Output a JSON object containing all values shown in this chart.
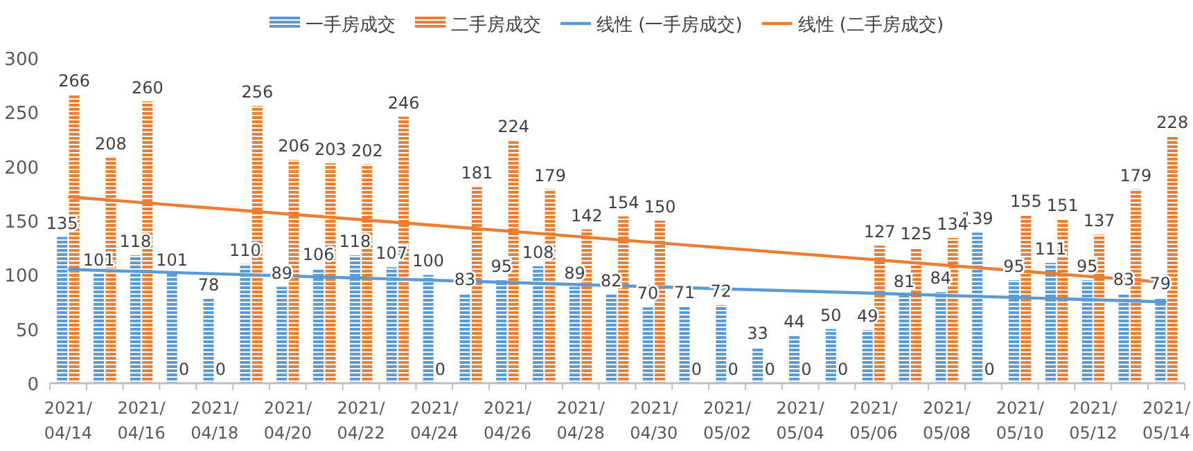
{
  "chart_data": {
    "type": "bar",
    "categories": [
      "2021/04/14",
      null,
      "2021/04/16",
      null,
      "2021/04/18",
      null,
      "2021/04/20",
      null,
      "2021/04/22",
      null,
      "2021/04/24",
      null,
      "2021/04/26",
      null,
      "2021/04/28",
      null,
      "2021/04/30",
      null,
      "2021/05/02",
      null,
      "2021/05/04",
      null,
      "2021/05/06",
      null,
      "2021/05/08",
      null,
      "2021/05/10",
      null,
      "2021/05/12",
      null,
      "2021/05/14"
    ],
    "series": [
      {
        "name": "一手房成交",
        "color": "#5b9bd5",
        "values": [
          135,
          101,
          118,
          101,
          78,
          110,
          89,
          106,
          118,
          107,
          100,
          83,
          95,
          108,
          89,
          82,
          70,
          71,
          72,
          33,
          44,
          50,
          49,
          81,
          84,
          139,
          95,
          111,
          95,
          83,
          79
        ],
        "value_labels": [
          "135",
          "101",
          "118",
          "101",
          "78",
          "110",
          "89",
          "106",
          "118",
          "107",
          "100",
          "83",
          "95",
          "108",
          "89",
          "82",
          "70",
          "71",
          "72",
          "33",
          "44",
          "50",
          "49",
          "81",
          "84",
          "139",
          "95",
          "111",
          "95",
          "83",
          "79"
        ]
      },
      {
        "name": "二手房成交",
        "color": "#ed7d31",
        "values": [
          266,
          208,
          260,
          0,
          0,
          256,
          206,
          203,
          202,
          246,
          0,
          181,
          224,
          179,
          142,
          154,
          150,
          0,
          0,
          0,
          0,
          0,
          127,
          125,
          134,
          0,
          155,
          151,
          137,
          179,
          228
        ],
        "value_labels": [
          "266",
          "208",
          "260",
          "0",
          "0",
          "256",
          "206",
          "203",
          "202",
          "246",
          "0",
          "181",
          "224",
          "179",
          "142",
          "154",
          "150",
          "0",
          "0",
          "0",
          "0",
          "0",
          "127",
          "125",
          "134",
          "0",
          "155",
          "151",
          "137",
          "179",
          "228"
        ]
      },
      {
        "name": "线性 (一手房成交)",
        "type": "line",
        "color": "#5b9bd5",
        "x": [
          "2021/04/14",
          "2021/05/14"
        ],
        "values": [
          105,
          75
        ]
      },
      {
        "name": "线性 (二手房成交)",
        "type": "line",
        "color": "#ed7d31",
        "x": [
          "2021/04/14",
          "2021/05/14"
        ],
        "values": [
          172,
          93
        ]
      }
    ],
    "ylim": [
      0,
      300
    ],
    "yticks": [
      0,
      50,
      100,
      150,
      200,
      250,
      300
    ],
    "legend": "top",
    "grid": false
  }
}
